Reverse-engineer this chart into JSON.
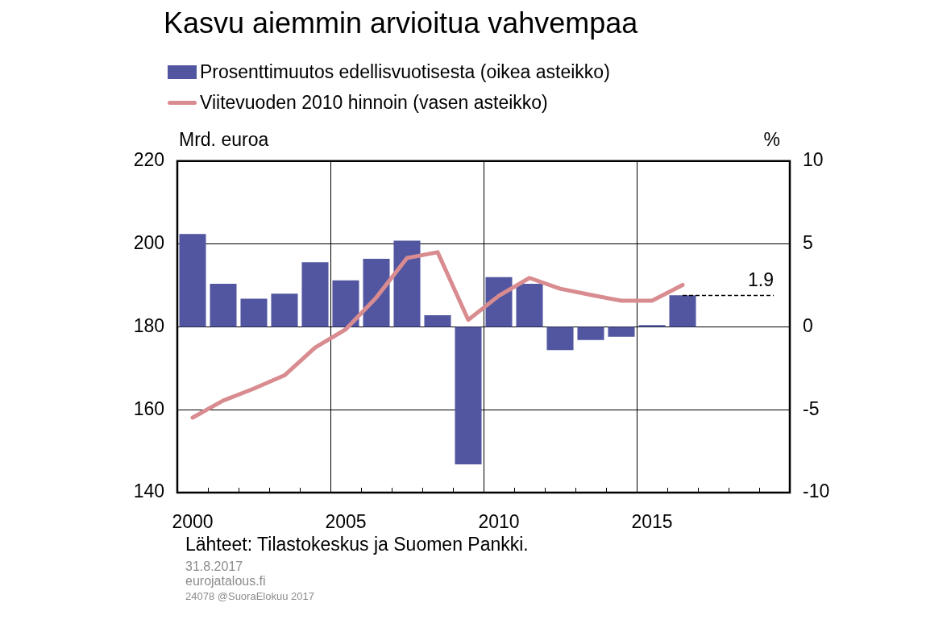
{
  "chart_data": {
    "type": "bar",
    "title": "Kasvu aiemmin arvioitua vahvempaa",
    "categories": [
      "2000",
      null,
      null,
      null,
      null,
      "2005",
      null,
      null,
      null,
      null,
      "2010",
      null,
      null,
      null,
      null,
      "2015",
      null,
      null,
      null,
      null
    ],
    "series": [
      {
        "name": "Prosenttimuutos edellisvuotisesta (oikea asteikko)",
        "axis": "y2",
        "color": "#5256a0",
        "values": [
          5.6,
          2.6,
          1.7,
          2.0,
          3.9,
          2.8,
          4.1,
          5.2,
          0.7,
          -8.3,
          3.0,
          2.6,
          -1.4,
          -0.8,
          -0.6,
          0.1,
          1.9,
          null,
          null,
          null
        ]
      },
      {
        "name": "Viitevuoden 2010 hinnoin (vasen asteikko)",
        "type": "line",
        "axis": "y",
        "color": "#d98c90",
        "values": [
          158.1,
          162.2,
          165.1,
          168.3,
          175.0,
          179.4,
          187.1,
          196.6,
          198.0,
          181.7,
          187.5,
          191.8,
          189.2,
          187.7,
          186.3,
          186.3,
          190.1,
          null,
          null,
          null
        ]
      }
    ],
    "ylabel": "Mrd. euroa",
    "y2label": "%",
    "ylim": [
      140,
      220
    ],
    "yticks": [
      140,
      160,
      180,
      200,
      220
    ],
    "y2lim": [
      -10,
      10
    ],
    "y2ticks": [
      -10,
      -5,
      0,
      5,
      10
    ],
    "ref_lines": [
      {
        "axis": "y2",
        "value": 1.9,
        "label": "1.9",
        "line_style": "dashed",
        "color": "#000000"
      }
    ],
    "grid": true,
    "legend": "top",
    "annotations": [
      "Lähteet: Tilastokeskus ja Suomen Pankki.",
      "31.8.2017",
      "eurojatalous.fi",
      "24078 @SuoraElokuu 2017"
    ]
  }
}
